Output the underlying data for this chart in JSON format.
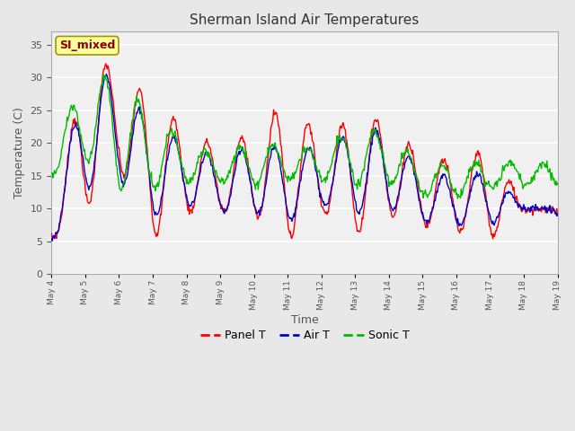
{
  "title": "Sherman Island Air Temperatures",
  "xlabel": "Time",
  "ylabel": "Temperature (C)",
  "ylim": [
    0,
    37
  ],
  "yticks": [
    0,
    5,
    10,
    15,
    20,
    25,
    30,
    35
  ],
  "annotation_text": "SI_mixed",
  "annotation_color": "#8B0000",
  "annotation_bg": "#FFFF99",
  "line_colors": {
    "panel": "#FF0000",
    "air": "#0000CC",
    "sonic": "#00BB00"
  },
  "legend_labels": [
    "Panel T",
    "Air T",
    "Sonic T"
  ],
  "bg_color": "#E8E8E8",
  "plot_bg": "#F0F0F0",
  "grid_color": "#FFFFFF",
  "tick_dates": [
    "May 4",
    "May 5",
    "May 6",
    "May 7",
    "May 8",
    "May 9",
    "May 10",
    "May 11",
    "May 12",
    "May 13",
    "May 14",
    "May 15",
    "May 16",
    "May 17",
    "May 18",
    "May 19"
  ],
  "panel_peaks": [
    8.5,
    31.5,
    32.2,
    25.5,
    22.7,
    18.5,
    22.0,
    26.2,
    21.0,
    24.0,
    23.5,
    17.5,
    17.5,
    19.0,
    10.5,
    9.5
  ],
  "panel_troughs": [
    5.2,
    10.0,
    16.5,
    5.7,
    9.5,
    9.7,
    9.0,
    5.3,
    9.7,
    6.0,
    9.0,
    7.5,
    6.5,
    5.2,
    9.8,
    9.5
  ],
  "air_peaks": [
    8.5,
    30.0,
    30.5,
    21.5,
    20.5,
    17.0,
    20.0,
    19.0,
    19.5,
    21.5,
    22.0,
    15.0,
    15.0,
    15.5,
    10.5,
    9.5
  ],
  "air_troughs": [
    5.0,
    13.0,
    14.5,
    9.0,
    10.5,
    9.5,
    9.5,
    8.0,
    10.5,
    9.5,
    10.0,
    8.0,
    7.5,
    7.5,
    10.0,
    9.5
  ],
  "sonic_peaks": [
    19.0,
    30.0,
    30.7,
    23.0,
    21.0,
    17.5,
    21.0,
    19.0,
    19.5,
    22.0,
    22.0,
    16.0,
    17.0,
    17.0,
    17.0,
    16.5
  ],
  "sonic_troughs": [
    15.0,
    17.5,
    13.0,
    13.0,
    14.0,
    14.0,
    13.5,
    14.5,
    14.5,
    13.5,
    14.0,
    12.0,
    12.0,
    13.0,
    13.5,
    13.5
  ]
}
